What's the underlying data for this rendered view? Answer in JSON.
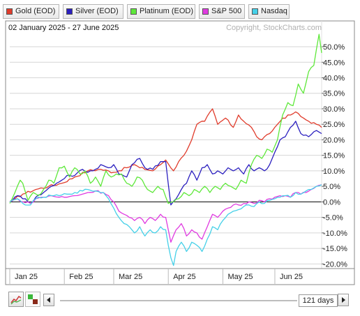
{
  "legend": [
    {
      "label": "Gold (EOD)",
      "color": "#e03c2c"
    },
    {
      "label": "Silver (EOD)",
      "color": "#2b1fbf"
    },
    {
      "label": "Platinum (EOD)",
      "color": "#5ee83a"
    },
    {
      "label": "S&P 500",
      "color": "#e03ae0"
    },
    {
      "label": "Nasdaq",
      "color": "#45d0e8"
    }
  ],
  "date_range": "02 January 2025 - 27 June 2025",
  "copyright": "Copyright, StockCharts.com",
  "controls": {
    "days": "121 days",
    "prev_icon": "left-arrow-icon",
    "next_icon": "right-arrow-icon",
    "chart_type_icon": "line-chart-icon",
    "style_icon": "bar-style-icon"
  },
  "chart_data": {
    "type": "line",
    "x_tick_labels": [
      "Jan 25",
      "Feb 25",
      "Mar 25",
      "Apr 25",
      "May 25",
      "Jun 25"
    ],
    "y_tick_labels": [
      "50.0%",
      "45.0%",
      "40.0%",
      "35.0%",
      "30.0%",
      "25.0%",
      "20.0%",
      "15.0%",
      "10.0%",
      "5.0%",
      "0.0%",
      "-5.0%",
      "-10.0%",
      "-15.0%",
      "-20.0%"
    ],
    "y_ticks": [
      50,
      45,
      40,
      35,
      30,
      25,
      20,
      15,
      10,
      5,
      0,
      -5,
      -10,
      -15,
      -20
    ],
    "ylim": [
      -21.5,
      54.5
    ],
    "n_points": 121,
    "series": [
      {
        "name": "Gold (EOD)",
        "color": "#e03c2c",
        "keypoints": [
          [
            0,
            0
          ],
          [
            2,
            1
          ],
          [
            5,
            2.5
          ],
          [
            10,
            4
          ],
          [
            15,
            5
          ],
          [
            20,
            6
          ],
          [
            25,
            8
          ],
          [
            30,
            10
          ],
          [
            35,
            10.5
          ],
          [
            40,
            9.5
          ],
          [
            45,
            11
          ],
          [
            48,
            12
          ],
          [
            50,
            11
          ],
          [
            55,
            10
          ],
          [
            58,
            12
          ],
          [
            60,
            13.5
          ],
          [
            63,
            10
          ],
          [
            65,
            13
          ],
          [
            67,
            15
          ],
          [
            70,
            20
          ],
          [
            72,
            25
          ],
          [
            75,
            26
          ],
          [
            78,
            30
          ],
          [
            80,
            25
          ],
          [
            83,
            27
          ],
          [
            86,
            24
          ],
          [
            88,
            28
          ],
          [
            90,
            26
          ],
          [
            93,
            24
          ],
          [
            95,
            21
          ],
          [
            97,
            20
          ],
          [
            100,
            22
          ],
          [
            103,
            25
          ],
          [
            105,
            27
          ],
          [
            108,
            28
          ],
          [
            110,
            29
          ],
          [
            112,
            27.5
          ],
          [
            115,
            26
          ],
          [
            118,
            25
          ],
          [
            120,
            24
          ]
        ]
      },
      {
        "name": "Silver (EOD)",
        "color": "#2b1fbf",
        "keypoints": [
          [
            0,
            0
          ],
          [
            3,
            2
          ],
          [
            6,
            1
          ],
          [
            8,
            -0.5
          ],
          [
            10,
            1.5
          ],
          [
            13,
            3
          ],
          [
            16,
            5
          ],
          [
            18,
            6
          ],
          [
            20,
            7
          ],
          [
            22,
            8.5
          ],
          [
            25,
            8.5
          ],
          [
            28,
            10.5
          ],
          [
            30,
            9.5
          ],
          [
            33,
            10.5
          ],
          [
            35,
            12
          ],
          [
            38,
            11
          ],
          [
            40,
            12
          ],
          [
            42,
            9
          ],
          [
            45,
            8
          ],
          [
            47,
            12
          ],
          [
            50,
            14
          ],
          [
            52,
            11
          ],
          [
            55,
            10.5
          ],
          [
            58,
            13
          ],
          [
            60,
            13
          ],
          [
            62,
            -1
          ],
          [
            64,
            1
          ],
          [
            66,
            4
          ],
          [
            68,
            6
          ],
          [
            70,
            10
          ],
          [
            72,
            7
          ],
          [
            74,
            11
          ],
          [
            76,
            12
          ],
          [
            78,
            9
          ],
          [
            80,
            10
          ],
          [
            82,
            9
          ],
          [
            84,
            11
          ],
          [
            86,
            10
          ],
          [
            88,
            11
          ],
          [
            90,
            9
          ],
          [
            92,
            12
          ],
          [
            94,
            10
          ],
          [
            96,
            11
          ],
          [
            98,
            10
          ],
          [
            100,
            12
          ],
          [
            102,
            16
          ],
          [
            104,
            20
          ],
          [
            106,
            21
          ],
          [
            108,
            24
          ],
          [
            110,
            26
          ],
          [
            112,
            22
          ],
          [
            115,
            21
          ],
          [
            118,
            23
          ],
          [
            120,
            22
          ]
        ]
      },
      {
        "name": "Platinum (EOD)",
        "color": "#5ee83a",
        "keypoints": [
          [
            0,
            -0.5
          ],
          [
            2,
            3
          ],
          [
            4,
            7
          ],
          [
            5,
            6
          ],
          [
            7,
            0.5
          ],
          [
            9,
            3
          ],
          [
            11,
            2
          ],
          [
            13,
            4
          ],
          [
            15,
            7
          ],
          [
            17,
            6
          ],
          [
            19,
            11
          ],
          [
            21,
            11.5
          ],
          [
            23,
            8
          ],
          [
            25,
            11
          ],
          [
            27,
            9
          ],
          [
            29,
            10
          ],
          [
            31,
            6
          ],
          [
            33,
            8
          ],
          [
            35,
            5
          ],
          [
            37,
            10
          ],
          [
            39,
            8
          ],
          [
            41,
            9
          ],
          [
            43,
            9
          ],
          [
            45,
            6
          ],
          [
            47,
            5
          ],
          [
            49,
            8
          ],
          [
            51,
            7
          ],
          [
            53,
            4
          ],
          [
            55,
            3
          ],
          [
            57,
            5
          ],
          [
            59,
            4
          ],
          [
            61,
            -0.5
          ],
          [
            63,
            0
          ],
          [
            65,
            1
          ],
          [
            67,
            3
          ],
          [
            69,
            2
          ],
          [
            71,
            4
          ],
          [
            73,
            3
          ],
          [
            75,
            5
          ],
          [
            77,
            3
          ],
          [
            79,
            5
          ],
          [
            81,
            4
          ],
          [
            83,
            6
          ],
          [
            85,
            5
          ],
          [
            87,
            4
          ],
          [
            89,
            7
          ],
          [
            91,
            6
          ],
          [
            93,
            12
          ],
          [
            95,
            15
          ],
          [
            97,
            14
          ],
          [
            99,
            17
          ],
          [
            101,
            16
          ],
          [
            103,
            20
          ],
          [
            105,
            28
          ],
          [
            107,
            32
          ],
          [
            109,
            31
          ],
          [
            111,
            38
          ],
          [
            113,
            35
          ],
          [
            115,
            42
          ],
          [
            117,
            44
          ],
          [
            119,
            54
          ],
          [
            120,
            48
          ]
        ]
      },
      {
        "name": "S&P 500",
        "color": "#e03ae0",
        "keypoints": [
          [
            0,
            0
          ],
          [
            3,
            1
          ],
          [
            5,
            0
          ],
          [
            8,
            -0.5
          ],
          [
            10,
            1
          ],
          [
            13,
            1.5
          ],
          [
            16,
            2
          ],
          [
            19,
            1.5
          ],
          [
            22,
            1.5
          ],
          [
            25,
            2
          ],
          [
            28,
            2.5
          ],
          [
            30,
            3
          ],
          [
            33,
            3.5
          ],
          [
            36,
            3
          ],
          [
            38,
            2
          ],
          [
            40,
            0
          ],
          [
            42,
            -3
          ],
          [
            44,
            -4
          ],
          [
            46,
            -5
          ],
          [
            48,
            -6
          ],
          [
            50,
            -5
          ],
          [
            52,
            -7
          ],
          [
            54,
            -5
          ],
          [
            56,
            -6
          ],
          [
            58,
            -4
          ],
          [
            60,
            -5
          ],
          [
            61,
            -9
          ],
          [
            62,
            -13
          ],
          [
            64,
            -9
          ],
          [
            66,
            -7
          ],
          [
            68,
            -11
          ],
          [
            70,
            -9
          ],
          [
            72,
            -10
          ],
          [
            74,
            -12
          ],
          [
            76,
            -8
          ],
          [
            78,
            -4
          ],
          [
            80,
            -5
          ],
          [
            82,
            -3
          ],
          [
            84,
            -2
          ],
          [
            86,
            -1
          ],
          [
            88,
            -1
          ],
          [
            90,
            -0.5
          ],
          [
            92,
            0
          ],
          [
            94,
            -0.5
          ],
          [
            96,
            0.5
          ],
          [
            98,
            0
          ],
          [
            100,
            1
          ],
          [
            102,
            1.5
          ],
          [
            104,
            2
          ],
          [
            106,
            2
          ],
          [
            108,
            1.5
          ],
          [
            110,
            3
          ],
          [
            112,
            2.5
          ],
          [
            114,
            3
          ],
          [
            116,
            4
          ],
          [
            118,
            5
          ],
          [
            120,
            5.5
          ]
        ]
      },
      {
        "name": "Nasdaq",
        "color": "#45d0e8",
        "keypoints": [
          [
            0,
            0
          ],
          [
            3,
            1
          ],
          [
            5,
            -0.5
          ],
          [
            8,
            -1
          ],
          [
            10,
            1
          ],
          [
            13,
            1.5
          ],
          [
            16,
            2
          ],
          [
            19,
            2
          ],
          [
            22,
            2.5
          ],
          [
            25,
            3
          ],
          [
            28,
            3.5
          ],
          [
            30,
            4
          ],
          [
            33,
            3.5
          ],
          [
            36,
            3
          ],
          [
            38,
            1
          ],
          [
            40,
            -2
          ],
          [
            42,
            -5
          ],
          [
            44,
            -7
          ],
          [
            46,
            -8
          ],
          [
            48,
            -10
          ],
          [
            50,
            -8
          ],
          [
            52,
            -11
          ],
          [
            54,
            -9
          ],
          [
            56,
            -10
          ],
          [
            58,
            -8
          ],
          [
            60,
            -9
          ],
          [
            61,
            -14
          ],
          [
            62,
            -18
          ],
          [
            63,
            -20.5
          ],
          [
            64,
            -16
          ],
          [
            66,
            -13
          ],
          [
            68,
            -16
          ],
          [
            70,
            -13
          ],
          [
            72,
            -14
          ],
          [
            74,
            -16
          ],
          [
            76,
            -12
          ],
          [
            78,
            -8
          ],
          [
            80,
            -9
          ],
          [
            82,
            -6
          ],
          [
            84,
            -4
          ],
          [
            86,
            -3
          ],
          [
            88,
            -2.5
          ],
          [
            90,
            -1.5
          ],
          [
            92,
            -1
          ],
          [
            94,
            -1.5
          ],
          [
            96,
            0
          ],
          [
            98,
            -0.5
          ],
          [
            100,
            0.5
          ],
          [
            102,
            1
          ],
          [
            104,
            1.5
          ],
          [
            106,
            2
          ],
          [
            108,
            1.5
          ],
          [
            110,
            3
          ],
          [
            112,
            2.5
          ],
          [
            114,
            3.5
          ],
          [
            116,
            4
          ],
          [
            118,
            5
          ],
          [
            120,
            5.5
          ]
        ]
      }
    ]
  }
}
